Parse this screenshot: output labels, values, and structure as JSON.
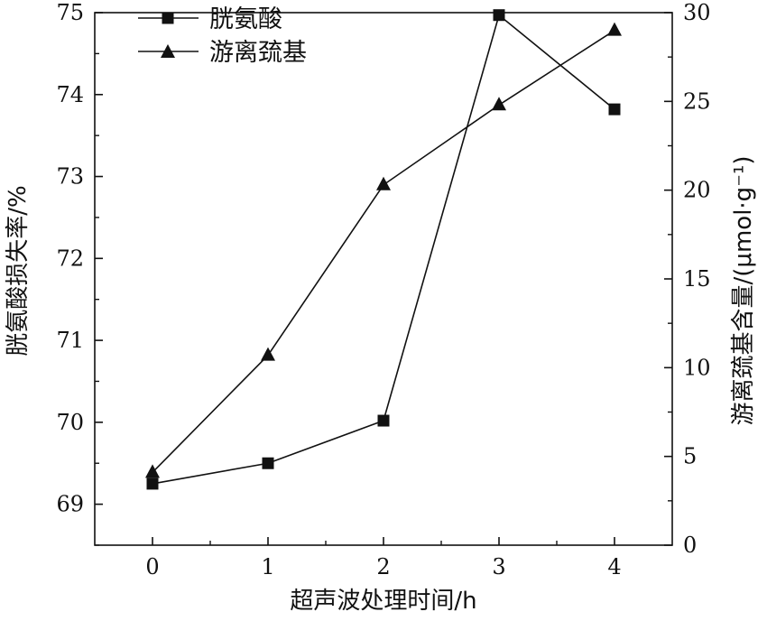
{
  "chart_data": {
    "type": "line",
    "x": [
      0,
      1,
      2,
      3,
      4
    ],
    "x_ticks": [
      "0",
      "1",
      "2",
      "3",
      "4"
    ],
    "xlabel": "超声波处理时间/h",
    "xlim": [
      -0.5,
      4.5
    ],
    "ylabel_left": "胱氨酸损失率/%",
    "ylim_left": [
      68.5,
      75
    ],
    "yticks_left": [
      "69",
      "70",
      "71",
      "72",
      "73",
      "74",
      "75"
    ],
    "ylabel_right": "游离巯基含量/(μmol·g⁻¹)",
    "ylim_right": [
      0,
      30
    ],
    "yticks_right": [
      "0",
      "5",
      "10",
      "15",
      "20",
      "25",
      "30"
    ],
    "series": [
      {
        "name": "胱氨酸",
        "axis": "left",
        "marker": "square",
        "values": [
          69.25,
          69.5,
          70.02,
          74.97,
          73.82
        ]
      },
      {
        "name": "游离巯基",
        "axis": "right",
        "marker": "triangle",
        "values": [
          4.1,
          10.7,
          20.3,
          24.8,
          29.0
        ]
      }
    ],
    "legend_position": "top-left",
    "grid": false
  }
}
